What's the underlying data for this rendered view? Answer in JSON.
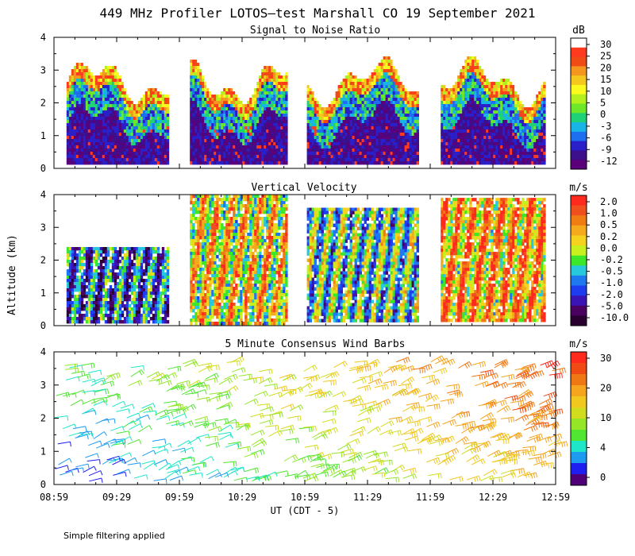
{
  "figure": {
    "title": "449 MHz Profiler LOTOS—test Marshall CO 19 September 2021",
    "xlabel": "UT  (CDT - 5)",
    "ylabel": "Altitude (km)",
    "footnote": "Simple filtering applied"
  },
  "palette": {
    "snr": [
      "#5a007a",
      "#3c0f8c",
      "#2a1fc8",
      "#1e6ef0",
      "#18b4e6",
      "#1fd278",
      "#6ee62a",
      "#b4f01e",
      "#fafa1e",
      "#f5c81e",
      "#f5961e",
      "#f04b14",
      "#ff3a1e",
      "#ffffff"
    ],
    "vv": [
      "#2a0030",
      "#4a0060",
      "#3a14b4",
      "#1e3cf0",
      "#1e78f0",
      "#28c8dc",
      "#3ce628",
      "#c8f01e",
      "#f5d21e",
      "#f5aa1e",
      "#f07d14",
      "#f0501e",
      "#ff2a1e"
    ],
    "wind": [
      "#500078",
      "#1e1ef0",
      "#1e9bf0",
      "#1ee6c8",
      "#50e632",
      "#96e628",
      "#d2dc1e",
      "#f0c81e",
      "#f5a51e",
      "#f07814",
      "#f04b14",
      "#ff2a1e"
    ]
  },
  "chart_data": [
    {
      "type": "heatmap",
      "title": "Signal to Noise Ratio",
      "unit_label": "dB",
      "ylim": [
        0,
        4
      ],
      "y_ticks": [
        "0",
        "1",
        "2",
        "3",
        "4"
      ],
      "x_ticks": [
        "08:59",
        "09:29",
        "09:59",
        "10:29",
        "10:59",
        "11:29",
        "11:59",
        "12:29",
        "12:59"
      ],
      "data_segments_utc": [
        [
          "09:05",
          "09:53"
        ],
        [
          "10:04",
          "10:50"
        ],
        [
          "11:00",
          "11:53"
        ],
        [
          "12:04",
          "12:53"
        ]
      ],
      "colorbar": {
        "labels": [
          "30",
          "25",
          "20",
          "15",
          "10",
          "5",
          "0",
          "-3",
          "-6",
          "-9",
          "-12"
        ],
        "max": 30,
        "min": -12
      }
    },
    {
      "type": "heatmap",
      "title": "Vertical Velocity",
      "unit_label": "m/s",
      "ylim": [
        0,
        4
      ],
      "y_ticks": [
        "0",
        "1",
        "2",
        "3",
        "4"
      ],
      "x_ticks": [
        "08:59",
        "09:29",
        "09:59",
        "10:29",
        "10:59",
        "11:29",
        "11:59",
        "12:29",
        "12:59"
      ],
      "data_segments_utc": [
        [
          "09:05",
          "09:53"
        ],
        [
          "10:04",
          "10:50"
        ],
        [
          "11:00",
          "11:53"
        ],
        [
          "12:04",
          "12:53"
        ]
      ],
      "colorbar": {
        "labels": [
          "2.0",
          "1.0",
          "0.5",
          "0.2",
          "0.0",
          "-0.2",
          "-0.5",
          "-1.0",
          "-2.0",
          "-5.0",
          "-10.0"
        ]
      }
    },
    {
      "type": "scatter",
      "title": "5 Minute Consensus Wind Barbs",
      "unit_label": "m/s",
      "ylim": [
        0,
        4
      ],
      "y_ticks": [
        "0",
        "1",
        "2",
        "3",
        "4"
      ],
      "x_ticks": [
        "08:59",
        "09:29",
        "09:59",
        "10:29",
        "10:59",
        "11:29",
        "11:59",
        "12:29",
        "12:59"
      ],
      "colorbar": {
        "labels": [
          "30",
          "20",
          "10",
          "4",
          "0"
        ],
        "values": [
          30,
          20,
          10,
          4,
          0
        ],
        "max": 33,
        "min": 0
      }
    }
  ]
}
